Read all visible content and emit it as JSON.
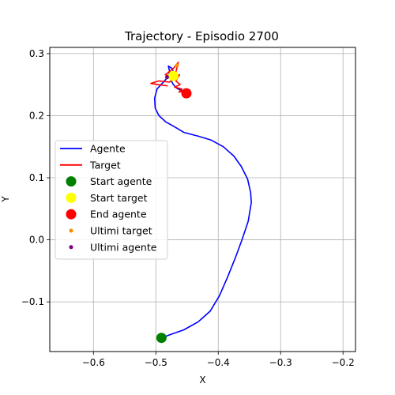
{
  "chart_data": {
    "type": "line",
    "title": "Trajectory - Episodio 2700",
    "xlabel": "X",
    "ylabel": "Y",
    "xlim": [
      -0.67,
      -0.18
    ],
    "ylim": [
      -0.18,
      0.31
    ],
    "xticks": [
      -0.6,
      -0.5,
      -0.4,
      -0.3,
      -0.2
    ],
    "xtick_labels": [
      "−0.6",
      "−0.5",
      "−0.4",
      "−0.3",
      "−0.2"
    ],
    "yticks": [
      -0.1,
      0.0,
      0.1,
      0.2,
      0.3
    ],
    "ytick_labels": [
      "−0.1",
      "0.0",
      "0.1",
      "0.2",
      "0.3"
    ],
    "grid": true,
    "legend_position": "center-left",
    "series": [
      {
        "name": "Agente",
        "kind": "line",
        "color": "#0000ff",
        "points": [
          [
            -0.491,
            -0.158
          ],
          [
            -0.475,
            -0.152
          ],
          [
            -0.455,
            -0.145
          ],
          [
            -0.432,
            -0.132
          ],
          [
            -0.413,
            -0.115
          ],
          [
            -0.398,
            -0.09
          ],
          [
            -0.385,
            -0.06
          ],
          [
            -0.373,
            -0.03
          ],
          [
            -0.362,
            0.0
          ],
          [
            -0.352,
            0.03
          ],
          [
            -0.347,
            0.06
          ],
          [
            -0.348,
            0.076
          ],
          [
            -0.353,
            0.098
          ],
          [
            -0.363,
            0.118
          ],
          [
            -0.375,
            0.135
          ],
          [
            -0.392,
            0.15
          ],
          [
            -0.412,
            0.161
          ],
          [
            -0.432,
            0.167
          ],
          [
            -0.455,
            0.173
          ],
          [
            -0.47,
            0.182
          ],
          [
            -0.484,
            0.19
          ],
          [
            -0.495,
            0.2
          ],
          [
            -0.501,
            0.212
          ],
          [
            -0.502,
            0.228
          ],
          [
            -0.498,
            0.243
          ],
          [
            -0.487,
            0.255
          ],
          [
            -0.48,
            0.263
          ],
          [
            -0.478,
            0.272
          ],
          [
            -0.48,
            0.28
          ],
          [
            -0.474,
            0.276
          ],
          [
            -0.471,
            0.268
          ],
          [
            -0.476,
            0.258
          ],
          [
            -0.472,
            0.25
          ],
          [
            -0.466,
            0.244
          ],
          [
            -0.458,
            0.24
          ],
          [
            -0.452,
            0.236
          ]
        ]
      },
      {
        "name": "Target",
        "kind": "line",
        "color": "#ff0000",
        "points": [
          [
            -0.481,
            0.248
          ],
          [
            -0.497,
            0.25
          ],
          [
            -0.508,
            0.252
          ],
          [
            -0.495,
            0.256
          ],
          [
            -0.478,
            0.254
          ],
          [
            -0.471,
            0.262
          ],
          [
            -0.485,
            0.266
          ],
          [
            -0.472,
            0.276
          ],
          [
            -0.464,
            0.286
          ],
          [
            -0.468,
            0.27
          ],
          [
            -0.474,
            0.26
          ],
          [
            -0.462,
            0.266
          ],
          [
            -0.468,
            0.256
          ],
          [
            -0.461,
            0.25
          ],
          [
            -0.47,
            0.246
          ],
          [
            -0.458,
            0.243
          ],
          [
            -0.463,
            0.238
          ],
          [
            -0.452,
            0.24
          ],
          [
            -0.456,
            0.234
          ]
        ]
      }
    ],
    "markers": [
      {
        "name": "Start agente",
        "color": "#008000",
        "size": "large",
        "x": -0.491,
        "y": -0.158
      },
      {
        "name": "Start target",
        "color": "#ffff00",
        "size": "large",
        "x": -0.472,
        "y": 0.264
      },
      {
        "name": "End agente",
        "color": "#ff0000",
        "size": "large",
        "x": -0.451,
        "y": 0.236
      },
      {
        "name": "Ultimi target",
        "color": "#ff8c00",
        "size": "small",
        "x": -0.466,
        "y": 0.281
      },
      {
        "name": "Ultimi agente",
        "color": "#800080",
        "size": "small",
        "x": -0.482,
        "y": 0.262
      }
    ],
    "legend": [
      {
        "label": "Agente",
        "kind": "line",
        "color": "#0000ff"
      },
      {
        "label": "Target",
        "kind": "line",
        "color": "#ff0000"
      },
      {
        "label": "Start agente",
        "kind": "marker-large",
        "color": "#008000"
      },
      {
        "label": "Start target",
        "kind": "marker-large",
        "color": "#ffff00"
      },
      {
        "label": "End agente",
        "kind": "marker-large",
        "color": "#ff0000"
      },
      {
        "label": "Ultimi target",
        "kind": "marker-small",
        "color": "#ff8c00"
      },
      {
        "label": "Ultimi agente",
        "kind": "marker-small",
        "color": "#800080"
      }
    ]
  }
}
